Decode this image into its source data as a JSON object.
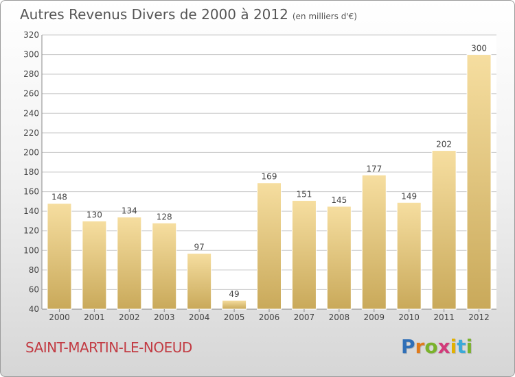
{
  "header": {
    "title": "Autres Revenus Divers de 2000 à 2012",
    "subtitle": "(en milliers d'€)"
  },
  "footer": {
    "place": "SAINT-MARTIN-LE-NOEUD",
    "logo_letters": [
      "P",
      "r",
      "o",
      "x",
      "i",
      "t",
      "i"
    ],
    "logo_colors": [
      "#2f6fb7",
      "#e07a1a",
      "#7ab22b",
      "#d23a7a",
      "#e2b100",
      "#3aa9d8",
      "#7ab22b"
    ]
  },
  "colors": {
    "bar_top": "#f6dea0",
    "bar_bottom": "#c9a95a",
    "plot_background": "#ffffff",
    "gridline": "#c8c8c8",
    "place_text": "#c23b43"
  },
  "chart_data": {
    "type": "bar",
    "title": "Autres Revenus Divers de 2000 à 2012",
    "xlabel": "",
    "ylabel": "",
    "categories": [
      "2000",
      "2001",
      "2002",
      "2003",
      "2004",
      "2005",
      "2006",
      "2007",
      "2008",
      "2009",
      "2010",
      "2011",
      "2012"
    ],
    "values": [
      148,
      130,
      134,
      128,
      97,
      49,
      169,
      151,
      145,
      177,
      149,
      202,
      300
    ],
    "ylim": [
      40,
      320
    ],
    "yticks": [
      40,
      60,
      80,
      100,
      120,
      140,
      160,
      180,
      200,
      220,
      240,
      260,
      280,
      300,
      320
    ],
    "grid": true,
    "legend": "none"
  }
}
